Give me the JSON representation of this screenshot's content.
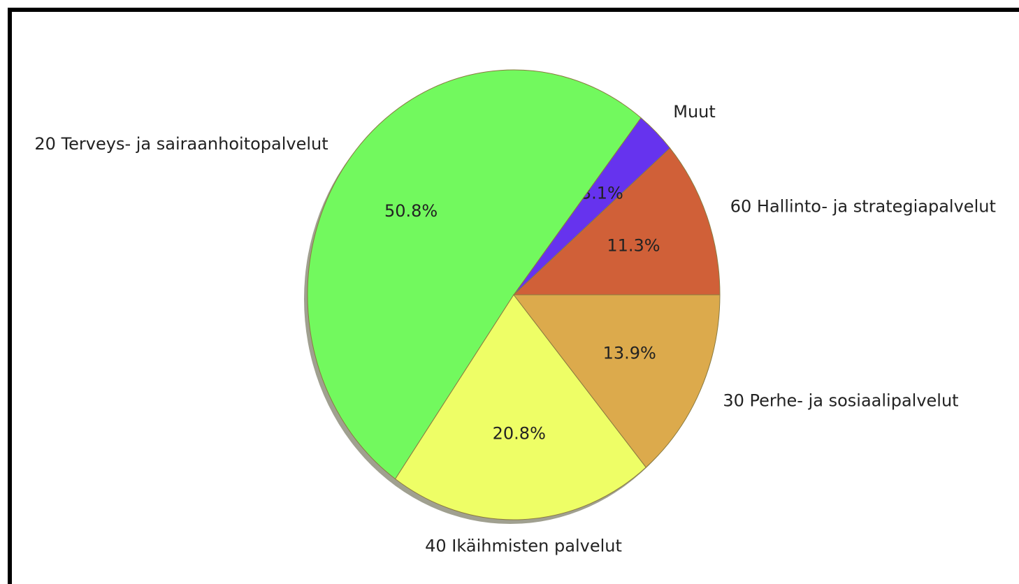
{
  "chart_data": {
    "type": "pie",
    "categories": [
      "60 Hallinto- ja strategiapalvelut",
      "Muut",
      "20 Terveys- ja sairaanhoitopalvelut",
      "40 Ikäihmisten palvelut",
      "30 Perhe- ja sosiaalipalvelut"
    ],
    "values": [
      11.3,
      3.1,
      50.8,
      20.8,
      13.9
    ],
    "value_labels": [
      "11.3%",
      "3.1%",
      "50.8%",
      "20.8%",
      "13.9%"
    ],
    "colors": [
      "#d06038",
      "#6633ee",
      "#72f95e",
      "#eefe66",
      "#dcaa4c"
    ],
    "shadow": true
  }
}
